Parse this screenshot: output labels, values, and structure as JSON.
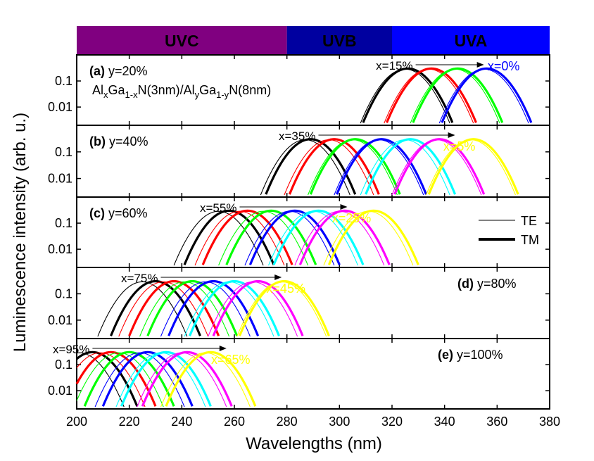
{
  "chart_data": {
    "type": "line",
    "xlabel": "Wavelengths (nm)",
    "ylabel": "Luminescence intensity (arb. u.)",
    "xlim": [
      200,
      380
    ],
    "ylim": [
      0.002,
      1
    ],
    "yscale": "log",
    "xticks": [
      200,
      220,
      240,
      260,
      280,
      300,
      320,
      340,
      360,
      380
    ],
    "yticks": [
      0.1,
      0.01
    ],
    "ytick_labels": [
      "0.1",
      "0.01"
    ],
    "bands": [
      {
        "label": "UVC",
        "from": 200,
        "to": 280,
        "color": "#800080"
      },
      {
        "label": "UVB",
        "from": 280,
        "to": 320,
        "color": "#0000a0"
      },
      {
        "label": "UVA",
        "from": 320,
        "to": 400,
        "color": "#0000ff"
      }
    ],
    "legend": {
      "position": "right",
      "entries": [
        {
          "label": "TE",
          "style": "thin"
        },
        {
          "label": "TM",
          "style": "thick"
        }
      ]
    },
    "panels": [
      {
        "id": "a",
        "label_bold": "(a)",
        "label_text": "y=20%",
        "structure": {
          "p1": "Al",
          "s1": "x",
          "p2": "Ga",
          "s2": "1-x",
          "p3": "N(3nm)/Al",
          "s3": "y",
          "p4": "Ga",
          "s4": "1-y",
          "p5": "N(8nm)"
        },
        "start_annotation": "x=15%",
        "end_annotation": "x=0%",
        "end_annotation_color": "#0000ff",
        "arrow": [
          329,
          355
        ],
        "series": [
          {
            "x_percent": 15,
            "color": "#000000",
            "te_peak": 325,
            "tm_peak": 326
          },
          {
            "x_percent": 10,
            "color": "#ff0000",
            "te_peak": 334,
            "tm_peak": 335
          },
          {
            "x_percent": 5,
            "color": "#00ff00",
            "te_peak": 344,
            "tm_peak": 345
          },
          {
            "x_percent": 0,
            "color": "#0000ff",
            "te_peak": 355,
            "tm_peak": 356
          }
        ]
      },
      {
        "id": "b",
        "label_bold": "(b)",
        "label_text": "y=40%",
        "start_annotation": "x=35%",
        "end_annotation": "x=5%",
        "end_annotation_color": "#ffff00",
        "arrow": [
          292,
          344
        ],
        "series": [
          {
            "x_percent": 35,
            "color": "#000000",
            "te_peak": 287,
            "tm_peak": 289
          },
          {
            "x_percent": 30,
            "color": "#ff0000",
            "te_peak": 296,
            "tm_peak": 298
          },
          {
            "x_percent": 25,
            "color": "#00ff00",
            "te_peak": 305,
            "tm_peak": 306
          },
          {
            "x_percent": 20,
            "color": "#0000ff",
            "te_peak": 315,
            "tm_peak": 316
          },
          {
            "x_percent": 15,
            "color": "#00ffff",
            "te_peak": 325,
            "tm_peak": 327
          },
          {
            "x_percent": 10,
            "color": "#ff00ff",
            "te_peak": 337,
            "tm_peak": 338
          },
          {
            "x_percent": 5,
            "color": "#ffff00",
            "te_peak": 350,
            "tm_peak": 351
          }
        ]
      },
      {
        "id": "c",
        "label_bold": "(c)",
        "label_text": "y=60%",
        "start_annotation": "x=55%",
        "end_annotation": "x=25%",
        "end_annotation_color": "#ffff00",
        "arrow": [
          262,
          303
        ],
        "series": [
          {
            "x_percent": 55,
            "color": "#000000",
            "te_peak": 254,
            "tm_peak": 258
          },
          {
            "x_percent": 50,
            "color": "#ff0000",
            "te_peak": 262,
            "tm_peak": 265
          },
          {
            "x_percent": 45,
            "color": "#00ff00",
            "te_peak": 271,
            "tm_peak": 274
          },
          {
            "x_percent": 40,
            "color": "#0000ff",
            "te_peak": 281,
            "tm_peak": 283
          },
          {
            "x_percent": 35,
            "color": "#00ffff",
            "te_peak": 290,
            "tm_peak": 292
          },
          {
            "x_percent": 30,
            "color": "#ff00ff",
            "te_peak": 300,
            "tm_peak": 302
          },
          {
            "x_percent": 25,
            "color": "#ffff00",
            "te_peak": 311,
            "tm_peak": 313
          }
        ]
      },
      {
        "id": "d",
        "label_bold": "(d)",
        "label_text": "y=80%",
        "start_annotation": "x=75%",
        "end_annotation": "x=45%",
        "end_annotation_color": "#ffff00",
        "arrow": [
          232,
          278
        ],
        "series": [
          {
            "x_percent": 75,
            "color": "#000000",
            "te_peak": 225,
            "tm_peak": 230
          },
          {
            "x_percent": 70,
            "color": "#ff0000",
            "te_peak": 233,
            "tm_peak": 237
          },
          {
            "x_percent": 65,
            "color": "#00ff00",
            "te_peak": 241,
            "tm_peak": 244
          },
          {
            "x_percent": 60,
            "color": "#0000ff",
            "te_peak": 249,
            "tm_peak": 252
          },
          {
            "x_percent": 55,
            "color": "#00ffff",
            "te_peak": 258,
            "tm_peak": 260
          },
          {
            "x_percent": 50,
            "color": "#ff00ff",
            "te_peak": 267,
            "tm_peak": 269
          },
          {
            "x_percent": 45,
            "color": "#ffff00",
            "te_peak": 278,
            "tm_peak": 279
          }
        ]
      },
      {
        "id": "e",
        "label_bold": "(e)",
        "label_text": "y=100%",
        "start_annotation": "x=95%",
        "end_annotation": "x=65%",
        "end_annotation_color": "#ffff00",
        "arrow": [
          206,
          257
        ],
        "series": [
          {
            "x_percent": 95,
            "color": "#000000",
            "te_peak": 201,
            "tm_peak": 206
          },
          {
            "x_percent": 90,
            "color": "#ff0000",
            "te_peak": 209,
            "tm_peak": 213
          },
          {
            "x_percent": 85,
            "color": "#00ff00",
            "te_peak": 216,
            "tm_peak": 220
          },
          {
            "x_percent": 80,
            "color": "#0000ff",
            "te_peak": 224,
            "tm_peak": 227
          },
          {
            "x_percent": 75,
            "color": "#00ffff",
            "te_peak": 232,
            "tm_peak": 234
          },
          {
            "x_percent": 70,
            "color": "#ff00ff",
            "te_peak": 240,
            "tm_peak": 242
          },
          {
            "x_percent": 65,
            "color": "#ffff00",
            "te_peak": 249,
            "tm_peak": 251
          }
        ]
      }
    ]
  }
}
